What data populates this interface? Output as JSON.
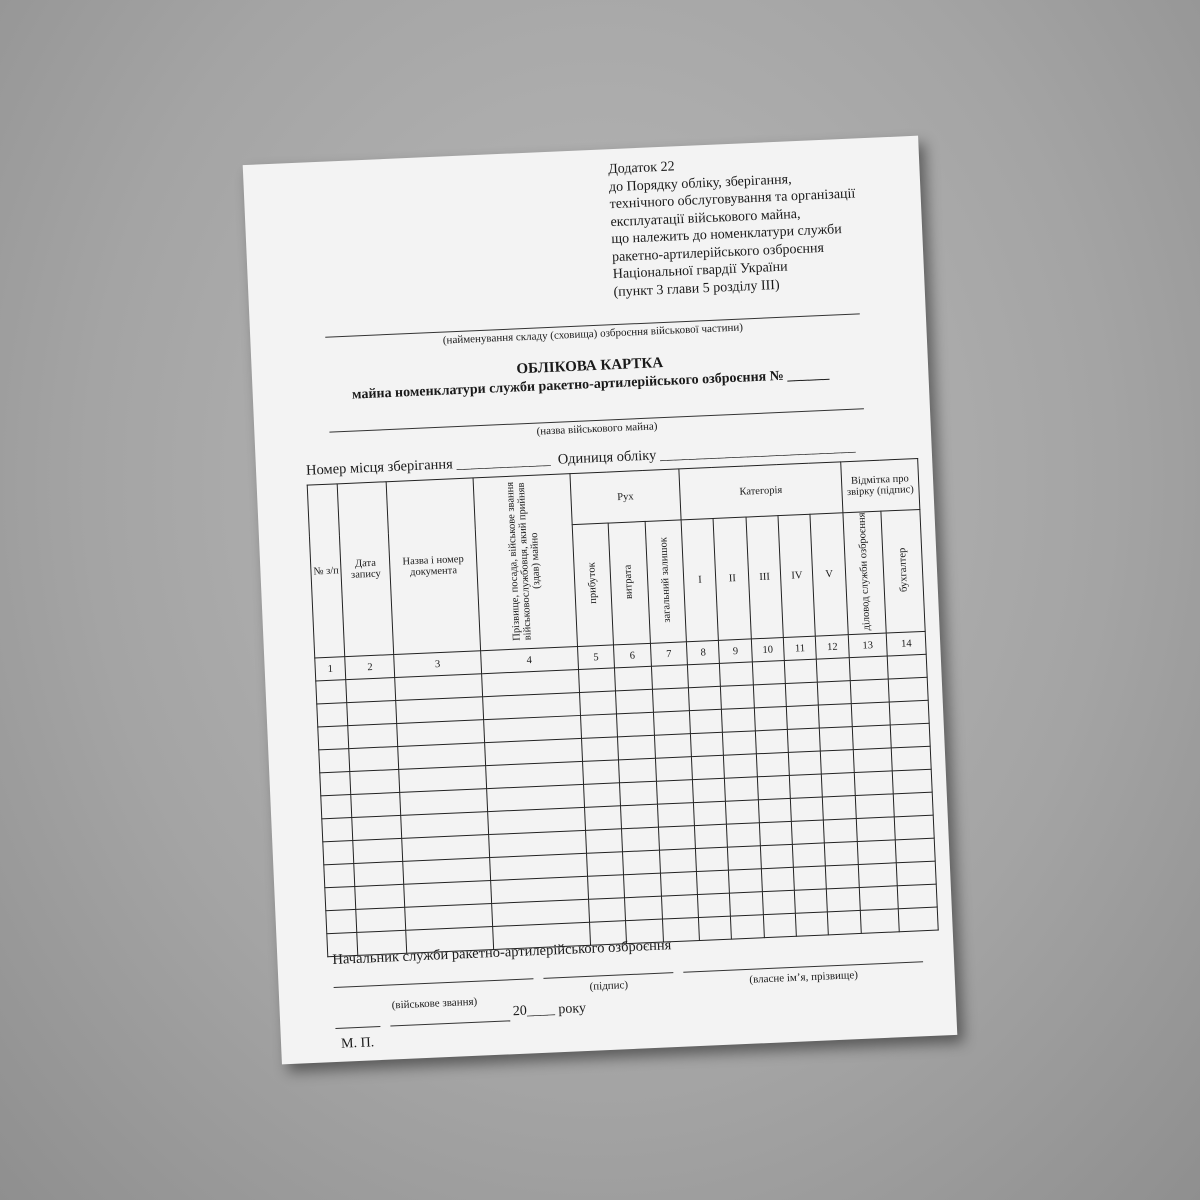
{
  "annex": [
    "Додаток 22",
    "до Порядку обліку, зберігання,",
    "технічного обслуговування та організації",
    "експлуатації військового майна,",
    "що належить до номенклатури служби",
    "ракетно-артилерійського озброєння",
    "Національної гвардії України",
    "(пункт 3 глави 5 розділу III)"
  ],
  "warehouse_caption": "(найменування складу (сховища) озброєння військової частини)",
  "title": "ОБЛІКОВА КАРТКА",
  "subtitle": "майна номенклатури служби ракетно-артилерійського озброєння № ______",
  "property_caption": "(назва військового майна)",
  "storage_label": "Номер місця зберігання _____________",
  "unit_label": "Одиниця обліку ___________________________",
  "table": {
    "h_no": "№ з/п",
    "h_date": "Дата запису",
    "h_doc": "Назва і номер документа",
    "h_person": "Прізвище, посада, військове звання військовослужбовця, який прийняв (здав) майно",
    "h_move": "Рух",
    "h_income": "прибуток",
    "h_expense": "витрата",
    "h_balance": "загальний залишок",
    "h_category": "Категорія",
    "cats": [
      "I",
      "II",
      "III",
      "IV",
      "V"
    ],
    "h_check": "Відмітка про звірку (підпис)",
    "h_chief": "діловод служби озброєння",
    "h_accountant": "бухгалтер",
    "numbers": [
      "1",
      "2",
      "3",
      "4",
      "5",
      "6",
      "7",
      "8",
      "9",
      "10",
      "11",
      "12",
      "13",
      "14"
    ]
  },
  "chief_label": "Начальник служби ракетно-артилерійського озброєння",
  "rank_caption": "(військове звання)",
  "signature_caption": "(підпис)",
  "name_caption": "(власне ім’я, прізвище)",
  "date_text": "20____ року",
  "stamp": "М. П."
}
